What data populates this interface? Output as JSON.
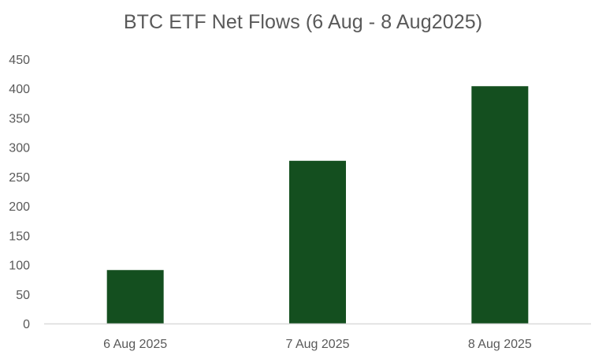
{
  "chart_data": {
    "type": "bar",
    "title": "BTC ETF Net Flows (6 Aug - 8 Aug2025)",
    "categories": [
      "6 Aug 2025",
      "7 Aug 2025",
      "8 Aug 2025"
    ],
    "values": [
      91,
      277,
      404
    ],
    "ylim": [
      0,
      450
    ],
    "yticks": [
      0,
      50,
      100,
      150,
      200,
      250,
      300,
      350,
      400,
      450
    ],
    "grid": false,
    "legend": "none",
    "bar_color": "#144f1f",
    "axis_color": "#d9d9d9",
    "text_color": "#595959"
  }
}
